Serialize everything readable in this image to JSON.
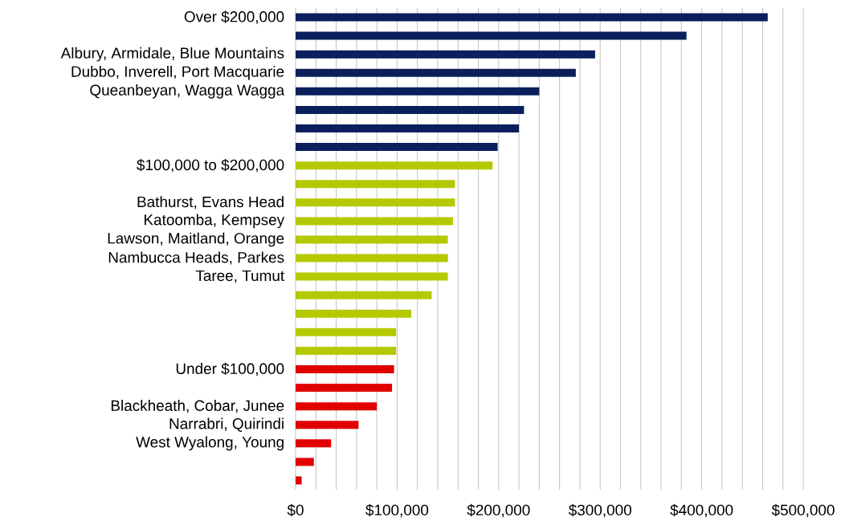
{
  "chart_data": {
    "type": "bar",
    "orientation": "horizontal",
    "categories": [
      "Over $200,000",
      null,
      "Albury, Armidale, Blue Mountains",
      "Dubbo, Inverell, Port Macquarie",
      "Queanbeyan, Wagga Wagga",
      null,
      null,
      null,
      "$100,000 to $200,000",
      null,
      "Bathurst, Evans Head",
      "Katoomba, Kempsey",
      "Lawson, Maitland, Orange",
      "Nambucca Heads, Parkes",
      "Taree, Tumut",
      null,
      null,
      null,
      null,
      "Under $100,000",
      null,
      "Blackheath, Cobar, Junee",
      "Narrabri, Quirindi",
      "West Wyalong, Young",
      null,
      null
    ],
    "values": [
      465000,
      385000,
      295000,
      276000,
      240000,
      225000,
      220000,
      199000,
      194000,
      157000,
      157000,
      155000,
      150000,
      150000,
      150000,
      134000,
      114000,
      99000,
      99000,
      97000,
      95000,
      80000,
      62000,
      35000,
      18000,
      6000
    ],
    "colors": [
      "#0a1f5c",
      "#0a1f5c",
      "#0a1f5c",
      "#0a1f5c",
      "#0a1f5c",
      "#0a1f5c",
      "#0a1f5c",
      "#0a1f5c",
      "#b5c900",
      "#b5c900",
      "#b5c900",
      "#b5c900",
      "#b5c900",
      "#b5c900",
      "#b5c900",
      "#b5c900",
      "#b5c900",
      "#b5c900",
      "#b5c900",
      "#e00000",
      "#e00000",
      "#e00000",
      "#e00000",
      "#e00000",
      "#e00000",
      "#e00000"
    ],
    "xlim": [
      0,
      500000
    ],
    "xticks": [
      {
        "value": 0,
        "label": "$0"
      },
      {
        "value": 20000,
        "label": null
      },
      {
        "value": 40000,
        "label": null
      },
      {
        "value": 60000,
        "label": null
      },
      {
        "value": 80000,
        "label": null
      },
      {
        "value": 100000,
        "label": "$100,000"
      },
      {
        "value": 120000,
        "label": null
      },
      {
        "value": 140000,
        "label": null
      },
      {
        "value": 160000,
        "label": null
      },
      {
        "value": 180000,
        "label": null
      },
      {
        "value": 200000,
        "label": "$200,000"
      },
      {
        "value": 220000,
        "label": null
      },
      {
        "value": 240000,
        "label": null
      },
      {
        "value": 260000,
        "label": null
      },
      {
        "value": 280000,
        "label": null
      },
      {
        "value": 300000,
        "label": "$300,000"
      },
      {
        "value": 320000,
        "label": null
      },
      {
        "value": 340000,
        "label": null
      },
      {
        "value": 360000,
        "label": null
      },
      {
        "value": 380000,
        "label": null
      },
      {
        "value": 400000,
        "label": "$400,000"
      },
      {
        "value": 420000,
        "label": null
      },
      {
        "value": 440000,
        "label": null
      },
      {
        "value": 460000,
        "label": null
      },
      {
        "value": 480000,
        "label": null
      },
      {
        "value": 500000,
        "label": "$500,000"
      }
    ],
    "grid": "x"
  }
}
